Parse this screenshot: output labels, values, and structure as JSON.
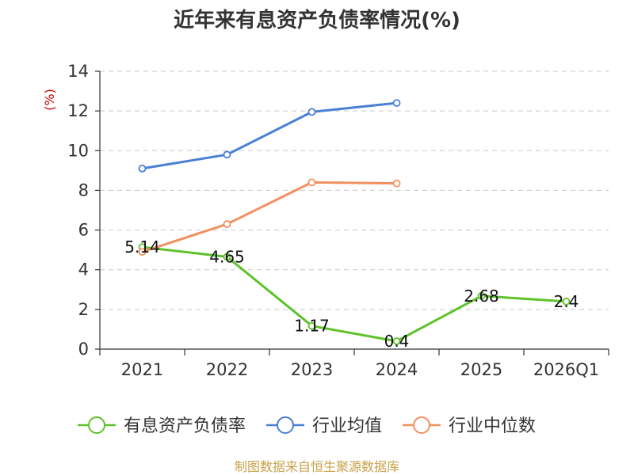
{
  "chart_data": {
    "type": "line",
    "title": "近年来有息资产负债率情况(%)",
    "ylabel": "(%)",
    "xlabel": "",
    "categories": [
      "2021",
      "2022",
      "2023",
      "2024",
      "2025",
      "2026Q1"
    ],
    "ylim": [
      0,
      14
    ],
    "yticks": [
      0,
      2,
      4,
      6,
      8,
      10,
      12,
      14
    ],
    "grid": true,
    "legend_position": "bottom",
    "series": [
      {
        "name": "有息资产负债率",
        "color": "#5ec22a",
        "values": [
          5.14,
          4.65,
          1.17,
          0.4,
          2.68,
          2.4
        ],
        "data_labels": [
          "5.14",
          "4.65",
          "1.17",
          "0.4",
          "2.68",
          "2.4"
        ]
      },
      {
        "name": "行业均值",
        "color": "#4a7fd6",
        "values": [
          9.1,
          9.8,
          11.95,
          12.4,
          null,
          null
        ]
      },
      {
        "name": "行业中位数",
        "color": "#f39060",
        "values": [
          4.9,
          6.3,
          8.4,
          8.35,
          null,
          null
        ]
      }
    ],
    "source": "制图数据来自恒生聚源数据库"
  }
}
